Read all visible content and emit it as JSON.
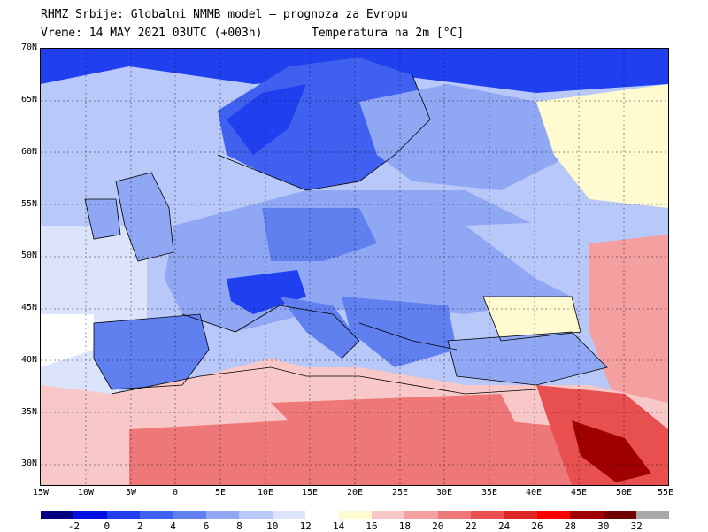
{
  "header": {
    "title": "RHMZ Srbije: Globalni NMMB model — prognoza za Evropu",
    "valid_time": "Vreme: 14 MAY 2021 03UTC (+003h)",
    "field": "Temperatura na 2m [°C]"
  },
  "axes": {
    "lat_labels": [
      "70N",
      "65N",
      "60N",
      "55N",
      "50N",
      "45N",
      "40N",
      "35N",
      "30N"
    ],
    "lon_labels": [
      "15W",
      "10W",
      "5W",
      "0",
      "5E",
      "10E",
      "15E",
      "20E",
      "25E",
      "30E",
      "35E",
      "40E",
      "45E",
      "50E",
      "55E"
    ]
  },
  "colorbar": {
    "colors": [
      "#000080",
      "#0010e0",
      "#2040f0",
      "#4060f0",
      "#6080f0",
      "#90a8f4",
      "#b8c8f8",
      "#dce4fc",
      "#ffffff",
      "#fffad0",
      "#f8c8c8",
      "#f4a0a0",
      "#ee7878",
      "#e85050",
      "#e02828",
      "#ff0000",
      "#a00000",
      "#700000",
      "#a8a8a8"
    ],
    "labels": [
      "-2",
      "0",
      "2",
      "4",
      "6",
      "8",
      "10",
      "12",
      "14",
      "16",
      "18",
      "20",
      "22",
      "24",
      "26",
      "28",
      "30",
      "32"
    ]
  },
  "map": {
    "ocean_color": "#b8c8f8",
    "regions": [
      {
        "name": "scandinavia-cold",
        "color": "#4060f0"
      },
      {
        "name": "europe-cool",
        "color": "#90a8f4"
      },
      {
        "name": "north-africa-warm",
        "color": "#ee7878"
      },
      {
        "name": "middle-east-hot",
        "color": "#e02828"
      }
    ]
  }
}
